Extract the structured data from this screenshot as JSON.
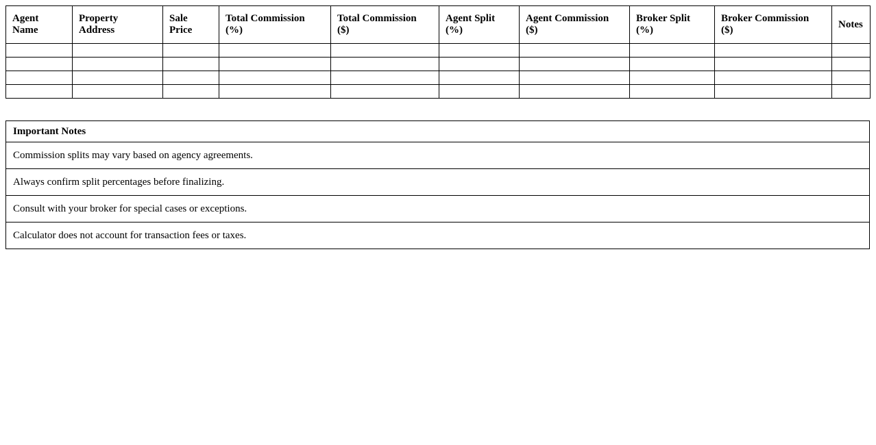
{
  "commission_table": {
    "headers": [
      "Agent\nName",
      "Property\nAddress",
      "Sale\nPrice",
      "Total Commission\n(%)",
      "Total Commission\n($)",
      "Agent Split\n(%)",
      "Agent Commission\n($)",
      "Broker Split\n(%)",
      "Broker Commission\n($)",
      "Notes"
    ],
    "empty_row_count": 4
  },
  "notes_table": {
    "title": "Important Notes",
    "items": [
      "Commission splits may vary based on agency agreements.",
      "Always confirm split percentages before finalizing.",
      "Consult with your broker for special cases or exceptions.",
      "Calculator does not account for transaction fees or taxes."
    ]
  },
  "colors": {
    "border": "#000000",
    "text": "#000000",
    "background": "#ffffff"
  }
}
